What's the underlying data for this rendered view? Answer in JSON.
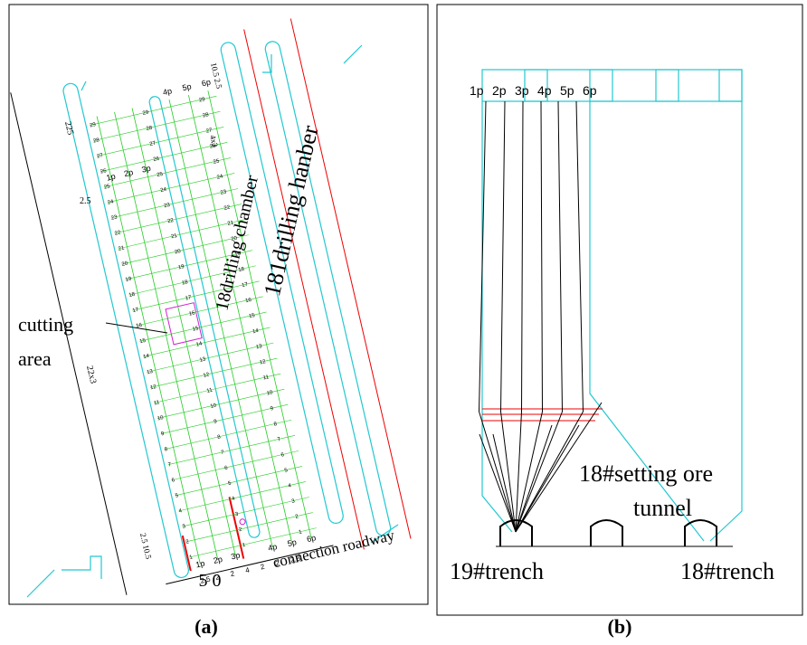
{
  "panel_a": {
    "label": "(a)",
    "column_labels_top": [
      "1p",
      "2p",
      "3p",
      "4p",
      "5p",
      "6p"
    ],
    "column_labels_bottom": [
      "1p",
      "2p",
      "3p",
      "4p",
      "5p",
      "6p"
    ],
    "row_numbers": [
      1,
      2,
      3,
      4,
      5,
      6,
      7,
      8,
      9,
      10,
      11,
      12,
      13,
      14,
      15,
      16,
      17,
      18,
      19,
      20,
      21,
      22,
      23,
      24,
      25,
      26,
      27,
      28,
      29
    ],
    "dim_total": "225",
    "dim_top_gap": "2.5",
    "dim_rows": "22x3",
    "dim_right_rows": "4x3",
    "dim_top_right": "10.5 2.5",
    "dim_bottom_left": "2.5 10.5",
    "bottom_spacing": [
      "2.5",
      "2",
      "2",
      "4",
      "2",
      "2",
      "2.8"
    ],
    "drilling_chamber": "18drilling chamber",
    "drilling_hanber": "181drilling hanber",
    "cutting_area": [
      "cutting",
      "area"
    ],
    "connection_roadway": "connection roadway",
    "bottom_dimension": "5 0"
  },
  "panel_b": {
    "label": "(b)",
    "column_labels": [
      "1p",
      "2p",
      "3p",
      "4p",
      "5p",
      "6p"
    ],
    "setting_ore_tunnel": [
      "18#setting ore",
      "tunnel"
    ],
    "trench_19": "19#trench",
    "trench_18": "18#trench"
  }
}
